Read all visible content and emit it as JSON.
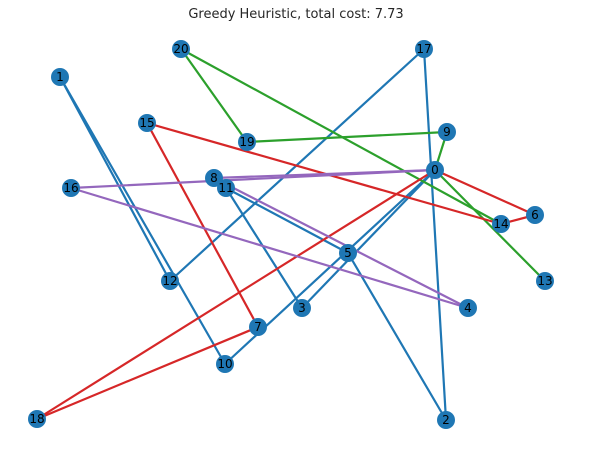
{
  "title": "Greedy Heuristic, total cost: 7.73",
  "colors": {
    "node": "#1f77b4",
    "route_blue": "#1f77b4",
    "route_green": "#2ca02c",
    "route_red": "#d62728",
    "route_purple": "#9467bd"
  },
  "nodes": [
    {
      "id": "0"
    },
    {
      "id": "1"
    },
    {
      "id": "2"
    },
    {
      "id": "3"
    },
    {
      "id": "4"
    },
    {
      "id": "5"
    },
    {
      "id": "6"
    },
    {
      "id": "7"
    },
    {
      "id": "8"
    },
    {
      "id": "9"
    },
    {
      "id": "10"
    },
    {
      "id": "11"
    },
    {
      "id": "12"
    },
    {
      "id": "13"
    },
    {
      "id": "14"
    },
    {
      "id": "15"
    },
    {
      "id": "16"
    },
    {
      "id": "17"
    },
    {
      "id": "18"
    },
    {
      "id": "19"
    },
    {
      "id": "20"
    }
  ],
  "edges": [
    {
      "from": "1",
      "to": "12",
      "color": "route_blue"
    },
    {
      "from": "1",
      "to": "10",
      "color": "route_blue"
    },
    {
      "from": "10",
      "to": "0",
      "color": "route_blue"
    },
    {
      "from": "0",
      "to": "3",
      "color": "route_blue"
    },
    {
      "from": "3",
      "to": "11",
      "color": "route_blue"
    },
    {
      "from": "11",
      "to": "5",
      "color": "route_blue"
    },
    {
      "from": "5",
      "to": "2",
      "color": "route_blue"
    },
    {
      "from": "2",
      "to": "17",
      "color": "route_blue"
    },
    {
      "from": "17",
      "to": "12",
      "color": "route_blue"
    },
    {
      "from": "0",
      "to": "13",
      "color": "route_green"
    },
    {
      "from": "0",
      "to": "9",
      "color": "route_green"
    },
    {
      "from": "9",
      "to": "19",
      "color": "route_green"
    },
    {
      "from": "19",
      "to": "20",
      "color": "route_green"
    },
    {
      "from": "20",
      "to": "14",
      "color": "route_green"
    },
    {
      "from": "0",
      "to": "6",
      "color": "route_red"
    },
    {
      "from": "6",
      "to": "14",
      "color": "route_red"
    },
    {
      "from": "14",
      "to": "15",
      "color": "route_red"
    },
    {
      "from": "15",
      "to": "7",
      "color": "route_red"
    },
    {
      "from": "7",
      "to": "18",
      "color": "route_red"
    },
    {
      "from": "18",
      "to": "0",
      "color": "route_red"
    },
    {
      "from": "0",
      "to": "8",
      "color": "route_purple"
    },
    {
      "from": "8",
      "to": "4",
      "color": "route_purple"
    },
    {
      "from": "4",
      "to": "16",
      "color": "route_purple"
    },
    {
      "from": "16",
      "to": "0",
      "color": "route_purple"
    }
  ]
}
